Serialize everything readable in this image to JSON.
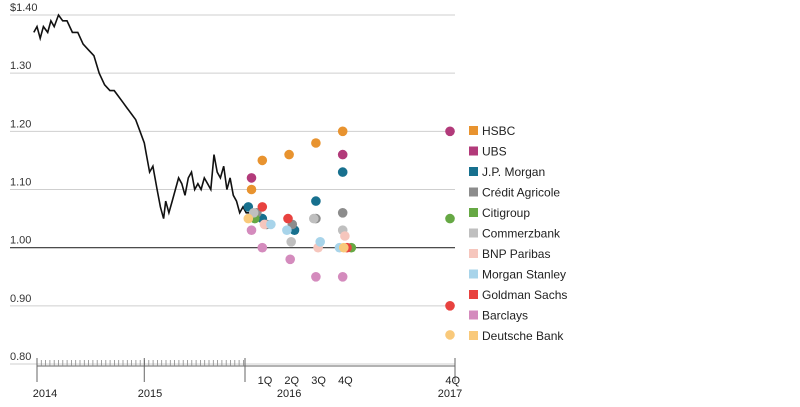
{
  "chart_data": {
    "type": "scatter",
    "ylim": [
      0.8,
      1.4
    ],
    "y_ticks": [
      {
        "value": 1.4,
        "label": "$1.40"
      },
      {
        "value": 1.3,
        "label": "1.30"
      },
      {
        "value": 1.2,
        "label": "1.20"
      },
      {
        "value": 1.1,
        "label": "1.10"
      },
      {
        "value": 1.0,
        "label": "1.00"
      },
      {
        "value": 0.9,
        "label": "0.90"
      },
      {
        "value": 0.8,
        "label": "0.80"
      }
    ],
    "x_labels": [
      {
        "label": "2014",
        "at": 2014.0,
        "level": "year"
      },
      {
        "label": "2015",
        "at": 2015.0,
        "level": "year"
      },
      {
        "label": "2016",
        "at": 2016.35,
        "level": "year"
      },
      {
        "label": "2017",
        "at": 2017.85,
        "level": "year"
      },
      {
        "label": "1Q",
        "at": 2016.125,
        "level": "quarter"
      },
      {
        "label": "2Q",
        "at": 2016.375,
        "level": "quarter"
      },
      {
        "label": "3Q",
        "at": 2016.625,
        "level": "quarter"
      },
      {
        "label": "4Q",
        "at": 2016.875,
        "level": "quarter"
      },
      {
        "label": "4Q",
        "at": 2017.875,
        "level": "quarter"
      }
    ],
    "history": {
      "x": [
        2013.97,
        2014.0,
        2014.03,
        2014.06,
        2014.1,
        2014.13,
        2014.16,
        2014.2,
        2014.24,
        2014.28,
        2014.33,
        2014.38,
        2014.43,
        2014.48,
        2014.53,
        2014.58,
        2014.63,
        2014.68,
        2014.72,
        2014.76,
        2014.8,
        2014.84,
        2014.88,
        2014.92,
        2014.96,
        2015.0,
        2015.02,
        2015.05,
        2015.08,
        2015.1,
        2015.12,
        2015.15,
        2015.18,
        2015.2,
        2015.23,
        2015.26,
        2015.29,
        2015.32,
        2015.35,
        2015.38,
        2015.41,
        2015.44,
        2015.47,
        2015.5,
        2015.53,
        2015.56,
        2015.59,
        2015.62,
        2015.65,
        2015.68,
        2015.71,
        2015.74,
        2015.77,
        2015.8,
        2015.83,
        2015.86,
        2015.89,
        2015.92,
        2015.95,
        2015.98
      ],
      "y": [
        1.37,
        1.38,
        1.36,
        1.38,
        1.37,
        1.39,
        1.38,
        1.4,
        1.39,
        1.39,
        1.37,
        1.37,
        1.35,
        1.34,
        1.33,
        1.3,
        1.28,
        1.27,
        1.27,
        1.26,
        1.25,
        1.24,
        1.23,
        1.22,
        1.2,
        1.18,
        1.16,
        1.13,
        1.14,
        1.12,
        1.1,
        1.07,
        1.05,
        1.08,
        1.06,
        1.08,
        1.1,
        1.12,
        1.11,
        1.09,
        1.12,
        1.13,
        1.1,
        1.11,
        1.1,
        1.12,
        1.11,
        1.1,
        1.16,
        1.13,
        1.12,
        1.14,
        1.1,
        1.12,
        1.09,
        1.08,
        1.06,
        1.07,
        1.06,
        1.06
      ]
    },
    "series": [
      {
        "name": "HSBC",
        "color": "#e8932f",
        "points": [
          [
            2016.0,
            1.1
          ],
          [
            2016.1,
            1.15
          ],
          [
            2016.35,
            1.16
          ],
          [
            2016.6,
            1.18
          ],
          [
            2016.85,
            1.2
          ]
        ]
      },
      {
        "name": "UBS",
        "color": "#b23a7a",
        "points": [
          [
            2016.0,
            1.12
          ],
          [
            2016.85,
            1.16
          ],
          [
            2017.85,
            1.2
          ]
        ]
      },
      {
        "name": "J.P. Morgan",
        "color": "#17708e",
        "points": [
          [
            2015.97,
            1.07
          ],
          [
            2016.1,
            1.05
          ],
          [
            2016.4,
            1.03
          ],
          [
            2016.6,
            1.08
          ],
          [
            2016.85,
            1.13
          ]
        ]
      },
      {
        "name": "Crédit Agricole",
        "color": "#8c8c8c",
        "points": [
          [
            2016.05,
            1.06
          ],
          [
            2016.14,
            1.04
          ],
          [
            2016.38,
            1.04
          ],
          [
            2016.6,
            1.05
          ],
          [
            2016.85,
            1.06
          ]
        ]
      },
      {
        "name": "Citigroup",
        "color": "#66a844",
        "points": [
          [
            2016.03,
            1.05
          ],
          [
            2016.93,
            1.0
          ],
          [
            2017.85,
            1.05
          ]
        ]
      },
      {
        "name": "Commerzbank",
        "color": "#bfbfbf",
        "points": [
          [
            2016.02,
            1.06
          ],
          [
            2016.37,
            1.01
          ],
          [
            2016.58,
            1.05
          ],
          [
            2016.85,
            1.03
          ]
        ]
      },
      {
        "name": "BNP Paribas",
        "color": "#f6c6bd",
        "points": [
          [
            2016.12,
            1.04
          ],
          [
            2016.62,
            1.0
          ],
          [
            2016.87,
            1.02
          ]
        ]
      },
      {
        "name": "Morgan Stanley",
        "color": "#a8d4ea",
        "points": [
          [
            2016.18,
            1.04
          ],
          [
            2016.33,
            1.03
          ],
          [
            2016.64,
            1.01
          ],
          [
            2016.82,
            1.0
          ]
        ]
      },
      {
        "name": "Goldman Sachs",
        "color": "#e8423f",
        "points": [
          [
            2016.1,
            1.07
          ],
          [
            2016.34,
            1.05
          ],
          [
            2016.89,
            1.0
          ],
          [
            2017.85,
            0.9
          ]
        ]
      },
      {
        "name": "Barclays",
        "color": "#d48bbd",
        "points": [
          [
            2016.0,
            1.03
          ],
          [
            2016.1,
            1.0
          ],
          [
            2016.36,
            0.98
          ],
          [
            2016.6,
            0.95
          ],
          [
            2016.85,
            0.95
          ]
        ]
      },
      {
        "name": "Deutsche Bank",
        "color": "#f9c97a",
        "points": [
          [
            2015.97,
            1.05
          ],
          [
            2016.86,
            1.0
          ],
          [
            2017.85,
            0.85
          ]
        ]
      }
    ]
  }
}
